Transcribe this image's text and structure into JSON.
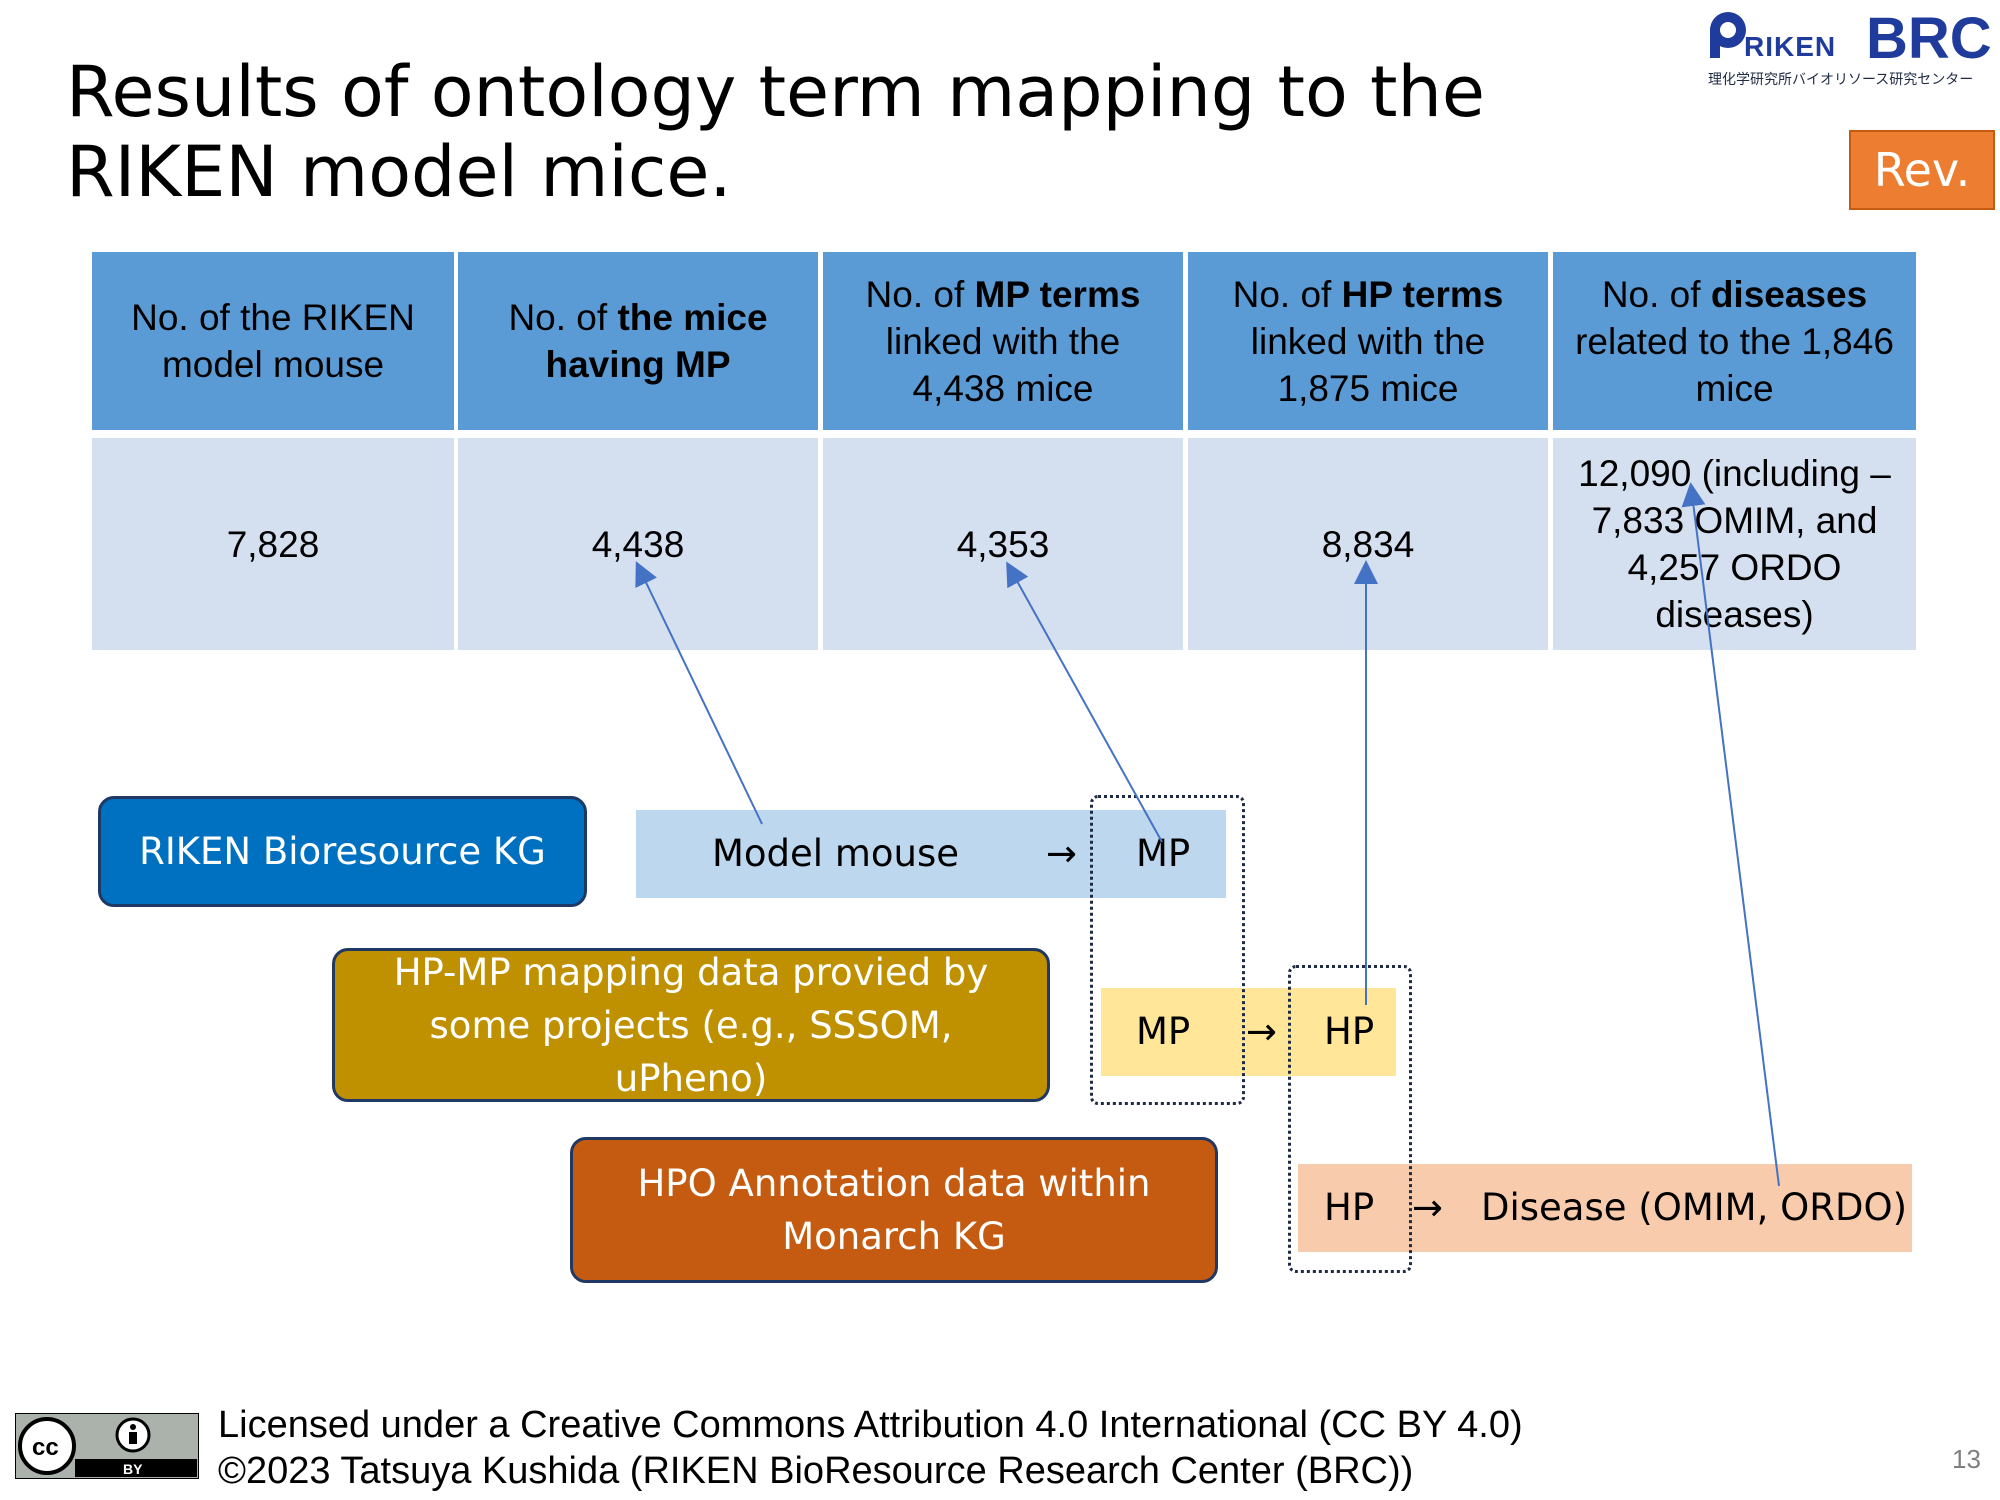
{
  "slide": {
    "title": "Results of ontology term mapping to the RIKEN model mice.",
    "rev_badge": "Rev.",
    "page_number": "13"
  },
  "logo": {
    "brand": "RIKEN BRC",
    "subtitle": "理化学研究所バイオリソース研究センター"
  },
  "table": {
    "headers": [
      {
        "pre": "No. of the RIKEN model mouse",
        "bold": "",
        "post": ""
      },
      {
        "pre": "No. of ",
        "bold": "the mice having MP",
        "post": ""
      },
      {
        "pre": "No. of ",
        "bold": "MP terms",
        "post": " linked with the 4,438 mice"
      },
      {
        "pre": "No. of ",
        "bold": "HP terms",
        "post": " linked with the 1,875 mice"
      },
      {
        "pre": "No. of ",
        "bold": "diseases",
        "post": " related to the 1,846 mice"
      }
    ],
    "values": [
      "7,828",
      "4,438",
      "4,353",
      "8,834",
      "12,090 (including – 7,833 OMIM, and 4,257 ORDO diseases)"
    ]
  },
  "sources": {
    "riken_kg": "RIKEN Bioresource KG",
    "hp_mp": "HP-MP mapping data provied by some projects (e.g., SSSOM, uPheno)",
    "hpo_annotation": "HPO Annotation data within Monarch KG"
  },
  "mapping": {
    "row1_left": "Model mouse",
    "row1_right": "MP",
    "row2_left": "MP",
    "row2_right": "HP",
    "row3_left": "HP",
    "row3_right": "Disease (OMIM, ORDO)",
    "arrow": "→"
  },
  "footer": {
    "license": "Licensed under a Creative Commons Attribution 4.0 International (CC BY 4.0)",
    "copyright": "©2023 Tatsuya Kushida (RIKEN BioResource Research Center (BRC))",
    "badge_cc": "cc",
    "badge_by": "BY"
  },
  "colors": {
    "header_blue": "#5b9bd5",
    "cell_blue": "#d4dff0",
    "riken_kg_box": "#0070c0",
    "hp_mp_box": "#bf9000",
    "hpo_box": "#c55a11",
    "band_blue": "#bdd7ee",
    "band_yellow": "#ffe699",
    "band_peach": "#f8cbad",
    "rev_orange": "#ed7d31",
    "arrow_line": "#4472c4"
  }
}
